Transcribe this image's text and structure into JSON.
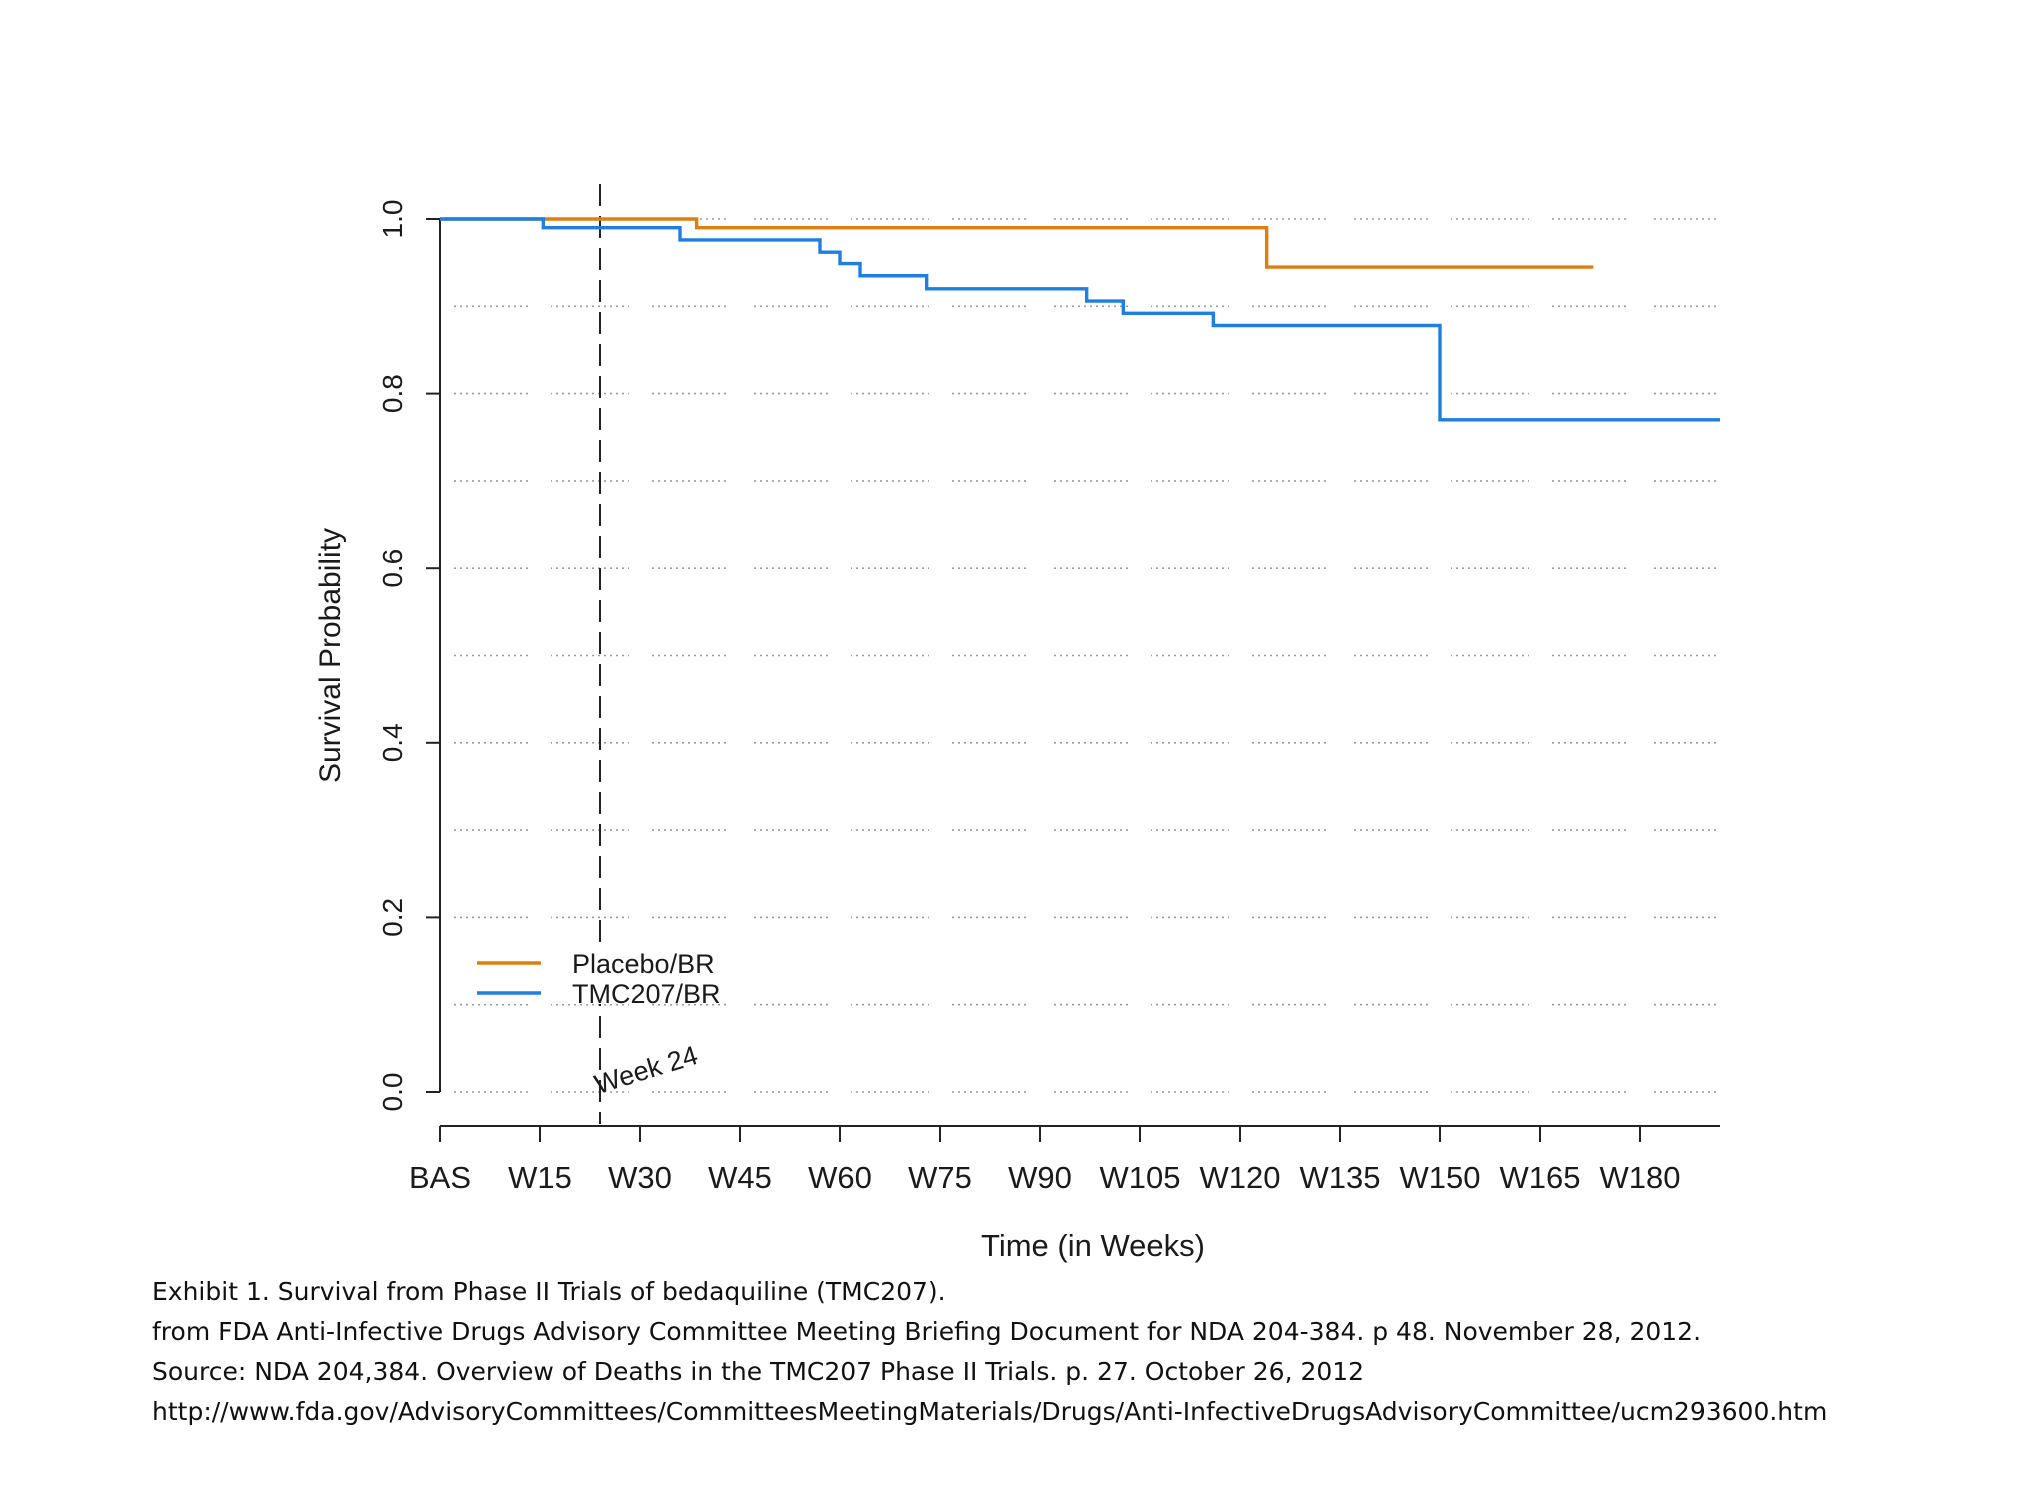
{
  "chart_data": {
    "type": "line",
    "step": true,
    "xlabel": "Time (in Weeks)",
    "ylabel": "Survival Probability",
    "xlim": [
      0,
      192
    ],
    "ylim": [
      0,
      1
    ],
    "x_ticks": [
      0,
      15,
      30,
      45,
      60,
      75,
      90,
      105,
      120,
      135,
      150,
      165,
      180
    ],
    "x_tick_labels": [
      "BAS",
      "W15",
      "W30",
      "W45",
      "W60",
      "W75",
      "W90",
      "W105",
      "W120",
      "W135",
      "W150",
      "W165",
      "W180"
    ],
    "y_ticks": [
      0.0,
      0.2,
      0.4,
      0.6,
      0.8,
      1.0
    ],
    "y_tick_labels": [
      "0.0",
      "0.2",
      "0.4",
      "0.6",
      "0.8",
      "1.0"
    ],
    "grid": true,
    "legend_position": "bottom-left",
    "reference_line": {
      "x": 24,
      "label": "Week 24"
    },
    "series": [
      {
        "name": "Placebo/BR",
        "color": "#e07d10",
        "x": [
          0,
          38.5,
          124,
          173
        ],
        "y": [
          1.0,
          0.99,
          0.945,
          0.945
        ]
      },
      {
        "name": "TMC207/BR",
        "color": "#1f7fe0",
        "x": [
          0,
          15.5,
          36,
          57,
          60,
          63,
          73,
          97,
          102.5,
          116,
          150,
          192
        ],
        "y": [
          1.0,
          0.99,
          0.976,
          0.962,
          0.949,
          0.935,
          0.92,
          0.906,
          0.892,
          0.878,
          0.77,
          0.77
        ]
      }
    ]
  },
  "caption": {
    "line1": "Exhibit 1. Survival from Phase II Trials of bedaquiline (TMC207).",
    "line2": "from FDA Anti-Infective Drugs Advisory Committee  Meeting Briefing Document for NDA 204-384. p 48. November  28, 2012.",
    "line3": "Source: NDA 204,384. Overview of Deaths in the TMC207 Phase II Trials. p. 27. October 26, 2012",
    "line4": "http://www.fda.gov/AdvisoryCommittees/CommitteesMeetingMaterials/Drugs/Anti-InfectiveDrugsAdvisoryCommittee/ucm293600.htm"
  }
}
